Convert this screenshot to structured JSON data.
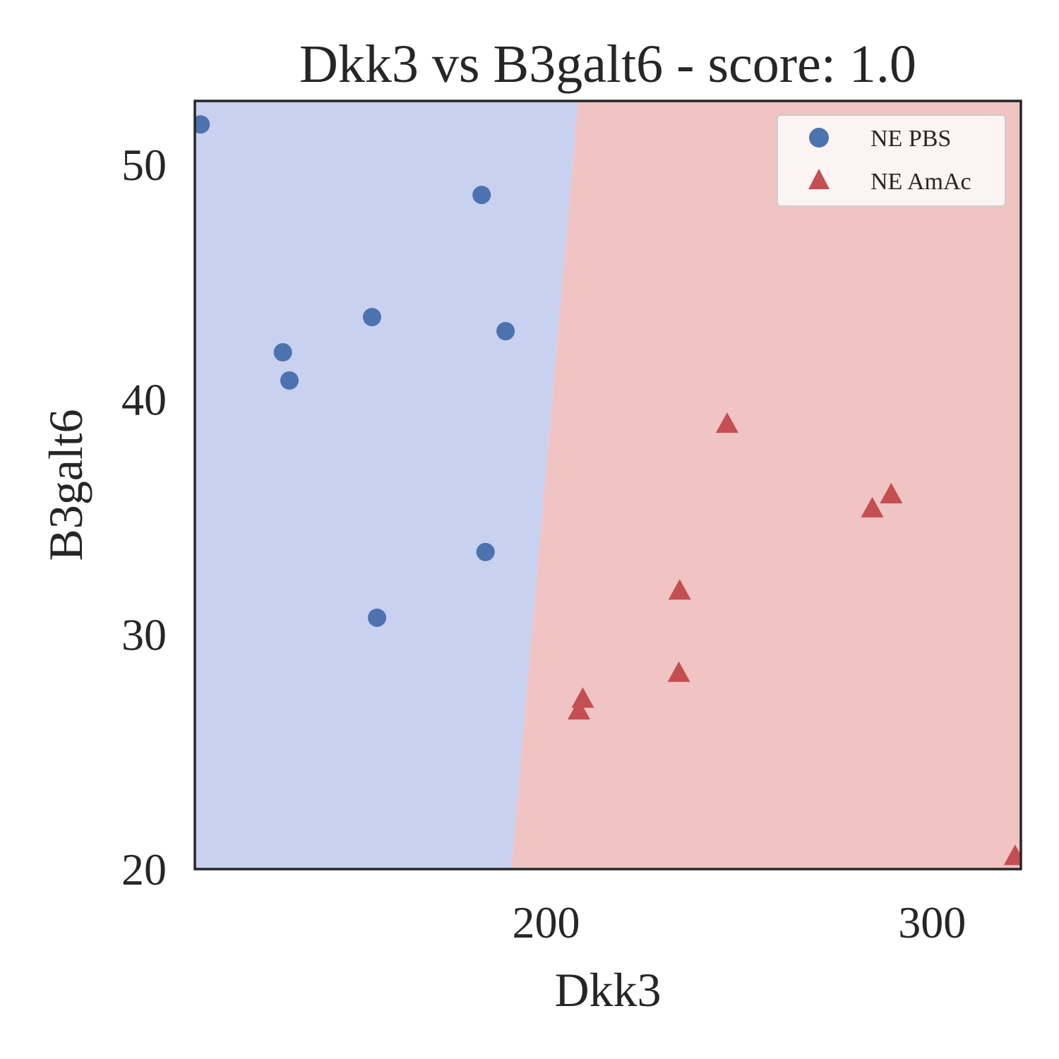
{
  "chart_data": {
    "type": "scatter",
    "title": "Dkk3 vs B3galt6 - score: 1.0",
    "xlabel": "Dkk3",
    "ylabel": "B3galt6",
    "xlim": [
      109,
      323
    ],
    "ylim": [
      20,
      52.7
    ],
    "xticks": [
      200,
      300
    ],
    "yticks": [
      20,
      30,
      40,
      50
    ],
    "grid": false,
    "legend_position": "top-right",
    "decision_boundary": {
      "points": [
        [
          208.3,
          52.7
        ],
        [
          191.0,
          20.0
        ]
      ],
      "left_region_color": "#c9d1f1",
      "right_region_color": "#efc4c3"
    },
    "series": [
      {
        "name": "NE PBS",
        "marker": "circle",
        "color": "#4c72b0",
        "x": [
          110.5,
          131.8,
          133.5,
          154.9,
          156.2,
          183.3,
          184.3,
          189.5
        ],
        "y": [
          51.7,
          42.0,
          40.8,
          43.5,
          30.7,
          48.7,
          33.5,
          42.9
        ]
      },
      {
        "name": "NE AmAc",
        "marker": "triangle",
        "color": "#c44e52",
        "x": [
          208.5,
          209.5,
          234.4,
          234.6,
          246.9,
          284.5,
          289.4,
          321.5
        ],
        "y": [
          26.7,
          27.2,
          28.3,
          31.8,
          38.9,
          35.3,
          35.9,
          20.5
        ]
      }
    ]
  }
}
